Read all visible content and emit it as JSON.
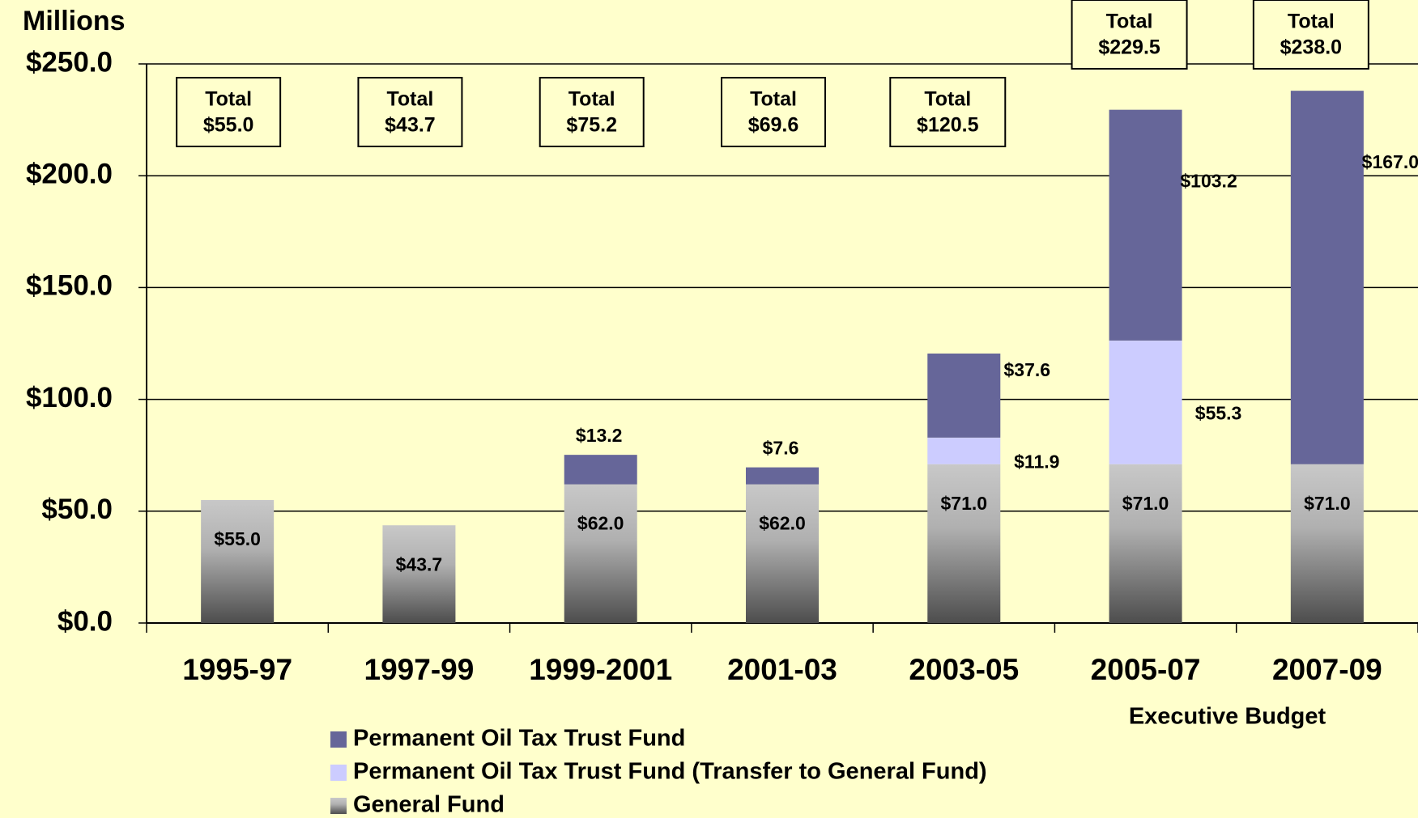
{
  "chart_data": {
    "type": "stacked_bar",
    "y_unit_label": "Millions",
    "categories": [
      "1995-97",
      "1997-99",
      "1999-2001",
      "2001-03",
      "2003-05",
      "2005-07",
      "2007-09"
    ],
    "annotations": [
      {
        "text": "Executive Budget",
        "category": 6
      }
    ],
    "series": [
      {
        "name": "Permanent Oil Tax Trust Fund",
        "color": "#666699",
        "values": [
          null,
          null,
          13.2,
          7.6,
          37.6,
          103.2,
          167.0
        ],
        "value_labels": [
          null,
          null,
          "$13.2",
          "$7.6",
          "$37.6",
          "$103.2",
          "$167.0"
        ]
      },
      {
        "name": "Permanent Oil Tax Trust Fund (Transfer to General Fund)",
        "color": "#ccccff",
        "values": [
          null,
          null,
          null,
          null,
          11.9,
          55.3,
          null
        ],
        "value_labels": [
          null,
          null,
          null,
          null,
          "$11.9",
          "$55.3",
          null
        ]
      },
      {
        "name": "General Fund",
        "color": "gradient",
        "values": [
          55.0,
          43.7,
          62.0,
          62.0,
          71.0,
          71.0,
          71.0
        ],
        "value_labels": [
          "$55.0",
          "$43.7",
          "$62.0",
          "$62.0",
          "$71.0",
          "$71.0",
          "$71.0"
        ]
      }
    ],
    "total_title": "Total",
    "totals": [
      55.0,
      43.7,
      75.2,
      69.6,
      120.5,
      229.5,
      238.0
    ],
    "total_labels": [
      "$55.0",
      "$43.7",
      "$75.2",
      "$69.6",
      "$120.5",
      "$229.5",
      "$238.0"
    ],
    "ylim": [
      0,
      250
    ],
    "yticks": [
      {
        "value": 0,
        "label": "$0.0"
      },
      {
        "value": 50,
        "label": "$50.0"
      },
      {
        "value": 100,
        "label": "$100.0"
      },
      {
        "value": 150,
        "label": "$150.0"
      },
      {
        "value": 200,
        "label": "$200.0"
      },
      {
        "value": 250,
        "label": "$250.0"
      }
    ],
    "grid": true
  }
}
